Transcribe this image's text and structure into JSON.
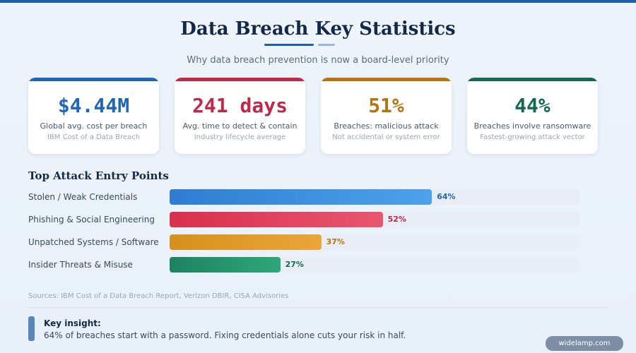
{
  "header": {
    "title": "Data Breach Key Statistics",
    "subtitle": "Why data breach prevention is now a board-level priority"
  },
  "stat_cards": [
    {
      "value": "$4.44M",
      "label": "Global avg. cost per breach",
      "note": "IBM Cost of a Data Breach",
      "color": "#1f66b5"
    },
    {
      "value": "241 days",
      "label": "Avg. time to detect & contain",
      "note": "Industry lifecycle average",
      "color": "#c0284a"
    },
    {
      "value": "51%",
      "label": "Breaches: malicious attack",
      "note": "Not accidental or system error",
      "color": "#b8730f"
    },
    {
      "value": "44%",
      "label": "Breaches involve ransomware",
      "note": "Fastest-growing attack vector",
      "color": "#13684f"
    }
  ],
  "chart_data": {
    "type": "bar",
    "orientation": "horizontal",
    "title": "Top Attack Entry Points",
    "categories": [
      "Stolen / Weak Credentials",
      "Phishing & Social Engineering",
      "Unpatched Systems / Software",
      "Insider Threats & Misuse"
    ],
    "values": [
      64,
      52,
      37,
      27
    ],
    "data_labels": [
      "64%",
      "52%",
      "37%",
      "27%"
    ],
    "xlim": [
      0,
      100
    ],
    "grid": false,
    "colors": [
      "#2f7dd1",
      "#d8304f",
      "#d6901c",
      "#1e8260"
    ],
    "gradient_end": [
      "#4da2ea",
      "#e9566f",
      "#eaa63a",
      "#2fa77a"
    ],
    "label_colors": [
      "#1f66b5",
      "#c0284a",
      "#b8730f",
      "#13684f"
    ]
  },
  "footer": {
    "sources": "Sources: IBM Cost of a Data Breach Report, Verizon DBIR, CISA Advisories",
    "insight_heading": "Key insight:",
    "insight_text": "64% of breaches start with a password. Fixing credentials alone cuts your risk in half.",
    "watermark": "widelamp.com"
  }
}
